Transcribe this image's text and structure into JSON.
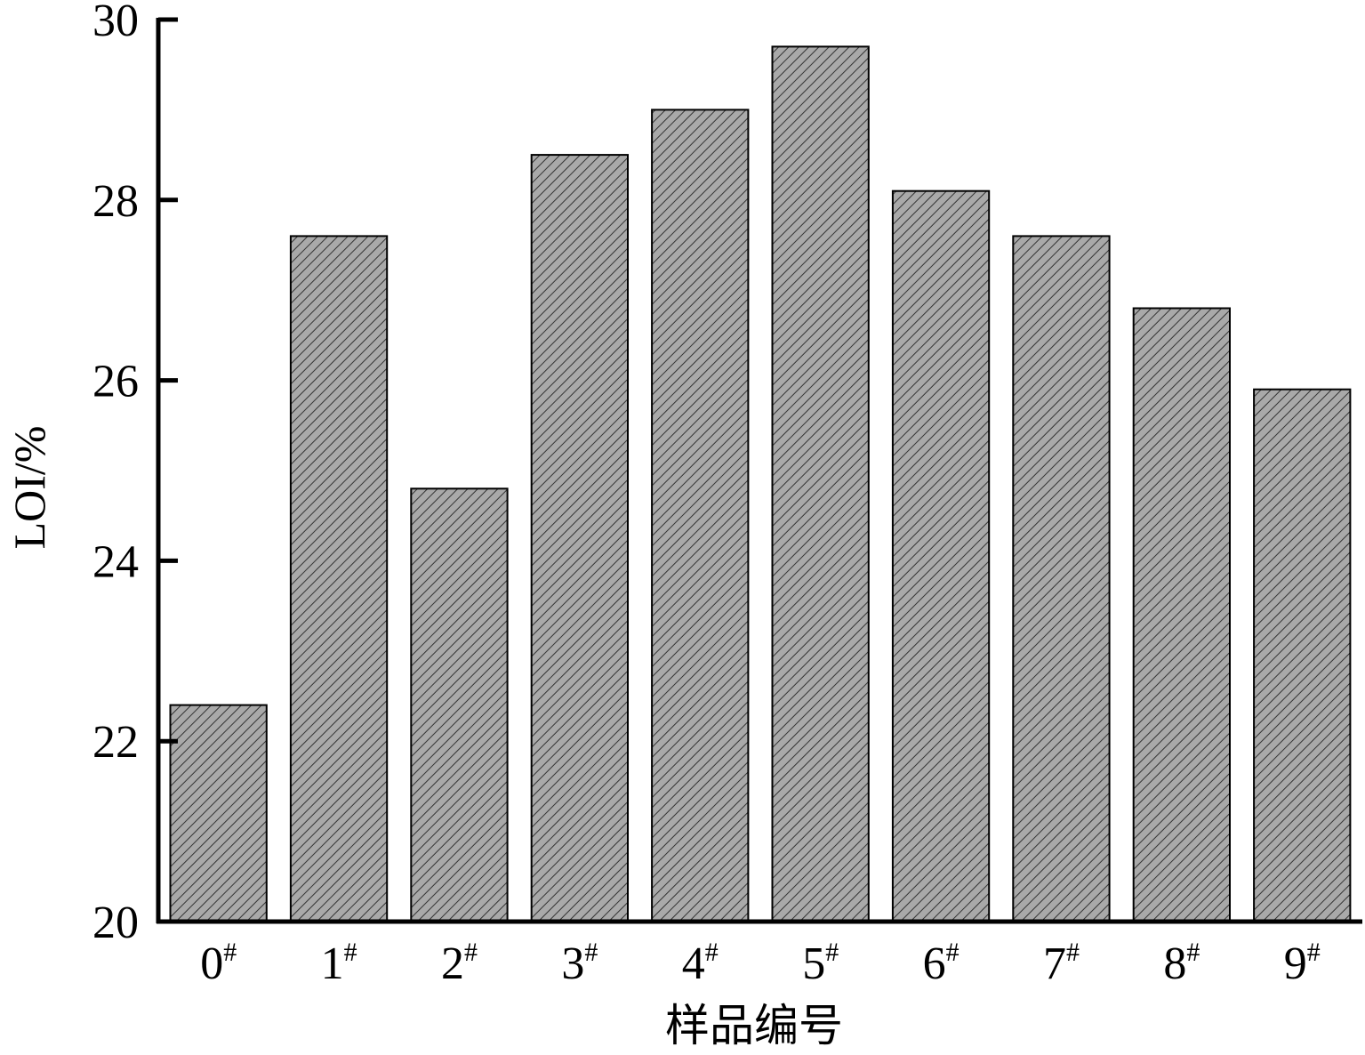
{
  "chart_data": {
    "type": "bar",
    "title": "",
    "xlabel": "样品编号",
    "ylabel": "LOI/%",
    "categories": [
      "0",
      "1",
      "2",
      "3",
      "4",
      "5",
      "6",
      "7",
      "8",
      "9"
    ],
    "category_superscript": "#",
    "values": [
      22.4,
      27.6,
      24.8,
      28.5,
      29.0,
      29.7,
      28.1,
      27.6,
      26.8,
      25.9
    ],
    "ylim": [
      20,
      30
    ],
    "yticks": [
      "20",
      "22",
      "24",
      "26",
      "28",
      "30"
    ],
    "grid": false,
    "legend": "none",
    "bar_fill": "#a9a9a9",
    "bar_hatch": "diagonal",
    "bar_stroke": "#000000",
    "axis_color": "#000000"
  }
}
